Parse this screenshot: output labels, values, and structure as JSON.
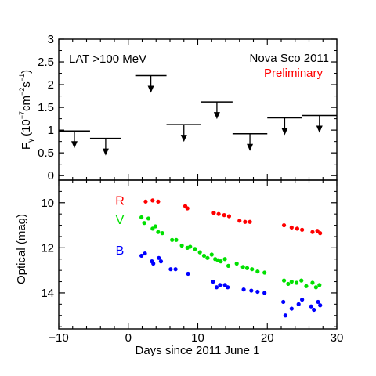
{
  "chart_data": [
    {
      "type": "scatter",
      "panel": "top",
      "ylabel_main": "F",
      "ylabel_sub": "γ",
      "ylabel_units_a": "(10",
      "ylabel_exp_a": "−7",
      "ylabel_units_b": "cm",
      "ylabel_exp_b": "−2",
      "ylabel_units_c": "s",
      "ylabel_exp_c": "−1",
      "ylabel_units_d": ")",
      "ylim": [
        -0.1,
        3.0
      ],
      "yticks": [
        0,
        0.5,
        1,
        1.5,
        2,
        2.5,
        3
      ],
      "ytick_labels": [
        "0",
        "0.5",
        "1",
        "1.5",
        "2",
        "2.5",
        "3"
      ],
      "xlim": [
        -10,
        30
      ],
      "annotations": {
        "energy": "LAT >100 MeV",
        "source": "Nova Sco 2011",
        "status": "Preliminary"
      },
      "upper_limits": [
        {
          "x_start": -10,
          "x_end": -5.5,
          "y": 0.98
        },
        {
          "x_start": -5.5,
          "x_end": -1,
          "y": 0.82
        },
        {
          "x_start": 1,
          "x_end": 5.5,
          "y": 2.2
        },
        {
          "x_start": 5.5,
          "x_end": 10.5,
          "y": 1.12
        },
        {
          "x_start": 10.5,
          "x_end": 15,
          "y": 1.62
        },
        {
          "x_start": 15,
          "x_end": 20,
          "y": 0.92
        },
        {
          "x_start": 20,
          "x_end": 25,
          "y": 1.27
        },
        {
          "x_start": 25,
          "x_end": 30,
          "y": 1.32
        }
      ]
    },
    {
      "type": "scatter",
      "panel": "bottom",
      "xlabel": "Days since 2011 June 1",
      "ylabel": "Optical (mag)",
      "ylim": [
        15.6,
        9.0
      ],
      "y_inverted": true,
      "yticks": [
        10,
        12,
        14
      ],
      "ytick_labels": [
        "10",
        "12",
        "14"
      ],
      "xlim": [
        -10,
        30
      ],
      "xticks": [
        -10,
        0,
        10,
        20,
        30
      ],
      "xtick_labels": [
        "−10",
        "0",
        "10",
        "20",
        "30"
      ],
      "series": [
        {
          "name": "R",
          "color": "#ff0000",
          "x": [
            2.5,
            3.5,
            4.3,
            8.2,
            8.5,
            12.3,
            13.0,
            13.8,
            14.5,
            16.0,
            16.8,
            17.5,
            22.4,
            23.5,
            24.3,
            25.0,
            26.5,
            27.2,
            27.6
          ],
          "y": [
            9.95,
            9.9,
            9.95,
            10.15,
            10.25,
            10.45,
            10.5,
            10.55,
            10.6,
            10.8,
            10.85,
            10.85,
            11.0,
            11.1,
            11.15,
            11.2,
            11.3,
            11.25,
            11.35
          ]
        },
        {
          "name": "V",
          "color": "#00e000",
          "x": [
            1.9,
            2.3,
            2.9,
            3.5,
            3.9,
            4.3,
            4.9,
            6.3,
            6.9,
            7.7,
            8.5,
            8.9,
            9.6,
            10.3,
            10.9,
            11.4,
            12.0,
            12.5,
            12.9,
            13.3,
            13.9,
            14.4,
            15.6,
            16.5,
            17.1,
            17.8,
            18.6,
            19.6,
            22.4,
            23.0,
            23.5,
            24.2,
            24.9,
            25.6,
            26.5,
            27.0,
            27.5
          ],
          "y": [
            10.65,
            10.9,
            10.7,
            11.15,
            11.05,
            11.3,
            11.35,
            11.65,
            11.65,
            11.9,
            12.0,
            11.95,
            12.05,
            12.2,
            12.35,
            12.45,
            12.3,
            12.5,
            12.55,
            12.6,
            12.5,
            12.8,
            12.7,
            12.85,
            12.9,
            12.95,
            13.05,
            13.1,
            13.45,
            13.6,
            13.5,
            13.55,
            13.45,
            13.7,
            13.55,
            13.75,
            13.65
          ]
        },
        {
          "name": "B",
          "color": "#0000ff",
          "x": [
            1.9,
            2.4,
            3.4,
            3.6,
            4.4,
            4.7,
            6.1,
            6.8,
            8.6,
            12.2,
            12.7,
            13.2,
            13.9,
            14.3,
            16.6,
            17.7,
            18.6,
            19.6,
            22.3,
            22.6,
            23.5,
            24.5,
            25.0,
            26.3,
            26.7,
            27.3,
            27.6
          ],
          "y": [
            12.35,
            12.25,
            12.6,
            12.7,
            12.45,
            12.6,
            12.95,
            12.95,
            13.15,
            13.5,
            13.75,
            13.65,
            13.65,
            13.75,
            13.85,
            13.9,
            13.95,
            14.0,
            14.4,
            15.0,
            14.7,
            14.5,
            14.3,
            14.6,
            14.75,
            14.4,
            14.55
          ]
        }
      ]
    }
  ],
  "colors": {
    "axes": "#000000",
    "limit_marks": "#000000",
    "preliminary": "#ff0000"
  }
}
